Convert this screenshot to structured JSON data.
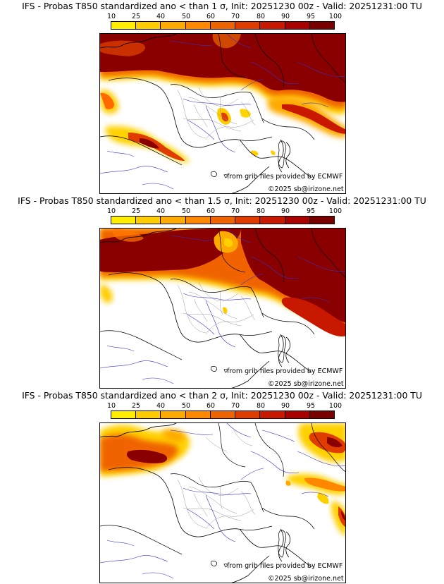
{
  "colorbar": {
    "ticks": [
      "10",
      "25",
      "40",
      "50",
      "60",
      "70",
      "80",
      "90",
      "95",
      "100"
    ],
    "colors": [
      "#ffee00",
      "#ffcc00",
      "#ffaa00",
      "#ff8800",
      "#f06400",
      "#e03c00",
      "#c81800",
      "#aa0000",
      "#7a0000"
    ]
  },
  "panels": [
    {
      "title": "IFS - Probas T850  standardized ano < than 1 σ, Init: 20251230 00z - Valid: 20251231:00 TU",
      "source_text": "from grib files provided by ECMWF",
      "site_text": "©2025 sb@irizone.net"
    },
    {
      "title": "IFS - Probas T850  standardized ano < than 1.5 σ, Init: 20251230 00z - Valid: 20251231:00 TU",
      "source_text": "from grib files provided by ECMWF",
      "site_text": "©2025 sb@irizone.net"
    },
    {
      "title": "IFS - Probas T850  standardized ano < than 2 σ, Init: 20251230 00z - Valid: 20251231:00 TU",
      "source_text": "from grib files provided by ECMWF",
      "site_text": "©2025 sb@irizone.net"
    }
  ]
}
